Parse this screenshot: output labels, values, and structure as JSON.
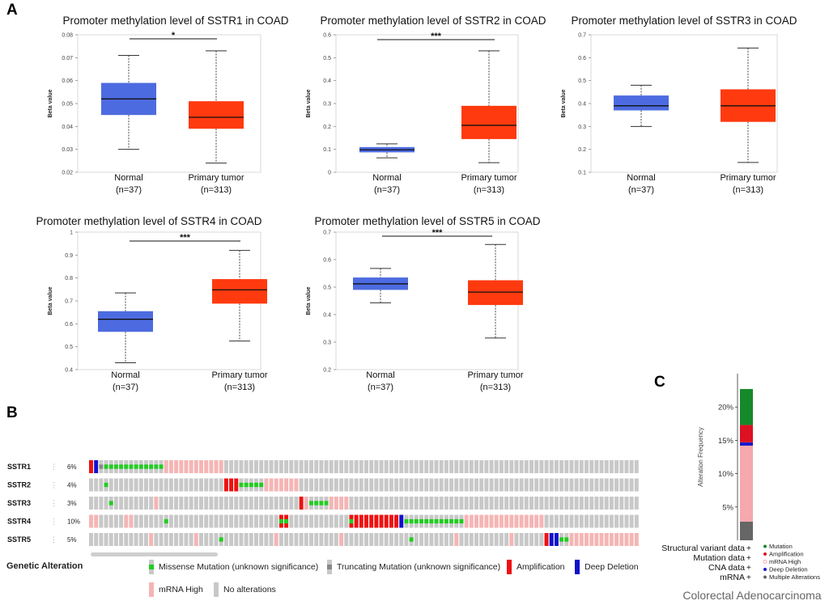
{
  "panels": {
    "a": "A",
    "b": "B",
    "c": "C"
  },
  "colors": {
    "normal": "#4D6BE0",
    "tumor": "#FF3A0F",
    "missense": "#22CC22",
    "truncating": "#888888",
    "amplification": "#EE1111",
    "deep_deletion": "#1111CC",
    "mrna_high": "#F5B5B5",
    "no_alteration": "#C8C8C8",
    "c_mutation": "#168A2A",
    "c_amplification": "#DD1122",
    "c_mrna_high": "#F5A8AE",
    "c_deep_deletion": "#1A1AC8",
    "c_multiple": "#666666"
  },
  "chart_data": [
    {
      "type": "box",
      "id": "SSTR1",
      "title": "Promoter methylation level of SSTR1 in COAD",
      "ylabel": "Beta value",
      "ylim": [
        0.02,
        0.08
      ],
      "yticks": [
        0.02,
        0.03,
        0.04,
        0.05,
        0.06,
        0.07,
        0.08
      ],
      "ytick_labels": [
        "0.02",
        "0.03",
        "0.04",
        "0.05",
        "0.06",
        "0.07",
        "0.08"
      ],
      "significance": "*",
      "groups": [
        {
          "name": "Normal",
          "n": "(n=37)",
          "min": 0.03,
          "q1": 0.045,
          "median": 0.052,
          "q3": 0.059,
          "max": 0.071
        },
        {
          "name": "Primary tumor",
          "n": "(n=313)",
          "min": 0.024,
          "q1": 0.039,
          "median": 0.044,
          "q3": 0.051,
          "max": 0.073
        }
      ]
    },
    {
      "type": "box",
      "id": "SSTR2",
      "title": "Promoter methylation level of SSTR2 in COAD",
      "ylabel": "Beta value",
      "ylim": [
        0,
        0.6
      ],
      "yticks": [
        0,
        0.1,
        0.2,
        0.3,
        0.4,
        0.5,
        0.6
      ],
      "ytick_labels": [
        "0",
        "0.1",
        "0.2",
        "0.3",
        "0.4",
        "0.5",
        "0.6"
      ],
      "significance": "***",
      "groups": [
        {
          "name": "Normal",
          "n": "(n=37)",
          "min": 0.063,
          "q1": 0.087,
          "median": 0.098,
          "q3": 0.11,
          "max": 0.124
        },
        {
          "name": "Primary tumor",
          "n": "(n=313)",
          "min": 0.042,
          "q1": 0.145,
          "median": 0.205,
          "q3": 0.29,
          "max": 0.53
        }
      ]
    },
    {
      "type": "box",
      "id": "SSTR3",
      "title": "Promoter methylation level of SSTR3 in COAD",
      "ylabel": "Beta value",
      "ylim": [
        0.1,
        0.7
      ],
      "yticks": [
        0.1,
        0.2,
        0.3,
        0.4,
        0.5,
        0.6,
        0.7
      ],
      "ytick_labels": [
        "0.1",
        "0.2",
        "0.3",
        "0.4",
        "0.5",
        "0.6",
        "0.7"
      ],
      "significance": "",
      "groups": [
        {
          "name": "Normal",
          "n": "(n=37)",
          "min": 0.3,
          "q1": 0.37,
          "median": 0.39,
          "q3": 0.435,
          "max": 0.48
        },
        {
          "name": "Primary tumor",
          "n": "(n=313)",
          "min": 0.143,
          "q1": 0.32,
          "median": 0.39,
          "q3": 0.462,
          "max": 0.642
        }
      ]
    },
    {
      "type": "box",
      "id": "SSTR4",
      "title": "Promoter methylation level of SSTR4 in COAD",
      "ylabel": "Beta value",
      "ylim": [
        0.4,
        1.0
      ],
      "yticks": [
        0.4,
        0.5,
        0.6,
        0.7,
        0.8,
        0.9,
        1.0
      ],
      "ytick_labels": [
        "0.4",
        "0.5",
        "0.6",
        "0.7",
        "0.8",
        "0.9",
        "1"
      ],
      "significance": "***",
      "groups": [
        {
          "name": "Normal",
          "n": "(n=37)",
          "min": 0.43,
          "q1": 0.565,
          "median": 0.62,
          "q3": 0.655,
          "max": 0.735
        },
        {
          "name": "Primary tumor",
          "n": "(n=313)",
          "min": 0.525,
          "q1": 0.688,
          "median": 0.748,
          "q3": 0.795,
          "max": 0.92
        }
      ]
    },
    {
      "type": "box",
      "id": "SSTR5",
      "title": "Promoter methylation level of SSTR5 in COAD",
      "ylabel": "Beta value",
      "ylim": [
        0.2,
        0.7
      ],
      "yticks": [
        0.2,
        0.3,
        0.4,
        0.5,
        0.6,
        0.7
      ],
      "ytick_labels": [
        "0.2",
        "0.3",
        "0.4",
        "0.5",
        "0.6",
        "0.7"
      ],
      "significance": "***",
      "groups": [
        {
          "name": "Normal",
          "n": "(n=37)",
          "min": 0.443,
          "q1": 0.49,
          "median": 0.512,
          "q3": 0.535,
          "max": 0.568
        },
        {
          "name": "Primary tumor",
          "n": "(n=313)",
          "min": 0.315,
          "q1": 0.435,
          "median": 0.482,
          "q3": 0.525,
          "max": 0.655
        }
      ]
    },
    {
      "type": "stacked_bar",
      "id": "alteration-frequency",
      "ylabel": "Alteration Frequency",
      "ylim": [
        0,
        0.25
      ],
      "yticks": [
        0.05,
        0.1,
        0.15,
        0.2
      ],
      "ytick_labels": [
        "5%",
        "10%",
        "15%",
        "20%"
      ],
      "category": "Colorectal Adenocarcinoma",
      "segments": [
        {
          "name": "Multiple Alterations",
          "value": 0.028,
          "color_key": "c_multiple"
        },
        {
          "name": "mRNA High",
          "value": 0.114,
          "color_key": "c_mrna_high"
        },
        {
          "name": "Deep Deletion",
          "value": 0.005,
          "color_key": "c_deep_deletion"
        },
        {
          "name": "Amplification",
          "value": 0.026,
          "color_key": "c_amplification"
        },
        {
          "name": "Mutation",
          "value": 0.054,
          "color_key": "c_mutation"
        }
      ],
      "row_labels": [
        "Structural variant data",
        "Mutation data",
        "CNA data",
        "mRNA"
      ],
      "legend": [
        "Mutation",
        "Amplification",
        "mRNA High",
        "Deep Deletion",
        "Multiple Alterations"
      ]
    }
  ],
  "oncoprint": {
    "n_samples": 110,
    "genes": [
      {
        "name": "SSTR1",
        "pct": "6%",
        "events": [
          [
            0,
            "amplification"
          ],
          [
            1,
            "deep_deletion"
          ],
          [
            2,
            "truncating"
          ],
          [
            3,
            "missense"
          ],
          [
            4,
            "missense"
          ],
          [
            5,
            "missense"
          ],
          [
            6,
            "missense"
          ],
          [
            7,
            "missense"
          ],
          [
            8,
            "missense"
          ],
          [
            9,
            "missense"
          ],
          [
            10,
            "missense"
          ],
          [
            11,
            "missense"
          ],
          [
            12,
            "missense"
          ],
          [
            13,
            "missense"
          ],
          [
            14,
            "missense"
          ],
          [
            15,
            "mrna"
          ],
          [
            16,
            "mrna"
          ],
          [
            17,
            "mrna"
          ],
          [
            18,
            "mrna"
          ],
          [
            19,
            "mrna"
          ],
          [
            20,
            "mrna"
          ],
          [
            21,
            "mrna"
          ],
          [
            22,
            "mrna"
          ],
          [
            23,
            "mrna"
          ],
          [
            24,
            "mrna"
          ],
          [
            25,
            "mrna"
          ],
          [
            26,
            "mrna"
          ]
        ]
      },
      {
        "name": "SSTR2",
        "pct": "4%",
        "events": [
          [
            3,
            "missense"
          ],
          [
            27,
            "amplification"
          ],
          [
            28,
            "amplification"
          ],
          [
            29,
            "amplification"
          ],
          [
            30,
            "missense"
          ],
          [
            31,
            "missense"
          ],
          [
            32,
            "missense"
          ],
          [
            33,
            "missense"
          ],
          [
            34,
            "missense"
          ],
          [
            35,
            "mrna"
          ],
          [
            36,
            "mrna"
          ],
          [
            37,
            "mrna"
          ],
          [
            38,
            "mrna"
          ],
          [
            39,
            "mrna"
          ],
          [
            40,
            "mrna"
          ],
          [
            41,
            "mrna"
          ]
        ]
      },
      {
        "name": "SSTR3",
        "pct": "3%",
        "events": [
          [
            4,
            "missense"
          ],
          [
            13,
            "mrna"
          ],
          [
            42,
            "amplification"
          ],
          [
            43,
            "mrna"
          ],
          [
            44,
            "missense"
          ],
          [
            45,
            "missense"
          ],
          [
            46,
            "missense"
          ],
          [
            47,
            "missense"
          ],
          [
            48,
            "mrna"
          ],
          [
            49,
            "mrna"
          ],
          [
            50,
            "mrna"
          ],
          [
            51,
            "mrna"
          ]
        ]
      },
      {
        "name": "SSTR4",
        "pct": "10%",
        "events": [
          [
            0,
            "mrna"
          ],
          [
            1,
            "mrna"
          ],
          [
            7,
            "mrna"
          ],
          [
            8,
            "mrna"
          ],
          [
            15,
            "missense"
          ],
          [
            38,
            "amp_missense"
          ],
          [
            39,
            "amp_missense"
          ],
          [
            52,
            "amp_missense"
          ],
          [
            53,
            "amplification"
          ],
          [
            54,
            "amplification"
          ],
          [
            55,
            "amplification"
          ],
          [
            56,
            "amplification"
          ],
          [
            57,
            "amplification"
          ],
          [
            58,
            "amplification"
          ],
          [
            59,
            "amplification"
          ],
          [
            60,
            "amplification"
          ],
          [
            61,
            "amplification"
          ],
          [
            62,
            "deep_deletion"
          ],
          [
            63,
            "missense"
          ],
          [
            64,
            "missense"
          ],
          [
            65,
            "missense"
          ],
          [
            66,
            "missense"
          ],
          [
            67,
            "missense"
          ],
          [
            68,
            "missense"
          ],
          [
            69,
            "missense"
          ],
          [
            70,
            "missense"
          ],
          [
            71,
            "missense"
          ],
          [
            72,
            "missense"
          ],
          [
            73,
            "missense"
          ],
          [
            74,
            "missense"
          ],
          [
            75,
            "mrna"
          ],
          [
            76,
            "mrna"
          ],
          [
            77,
            "mrna"
          ],
          [
            78,
            "mrna"
          ],
          [
            79,
            "mrna"
          ],
          [
            80,
            "mrna"
          ],
          [
            81,
            "mrna"
          ],
          [
            82,
            "mrna"
          ],
          [
            83,
            "mrna"
          ],
          [
            84,
            "mrna"
          ],
          [
            85,
            "mrna"
          ],
          [
            86,
            "mrna"
          ],
          [
            87,
            "mrna"
          ],
          [
            88,
            "mrna"
          ],
          [
            89,
            "mrna"
          ],
          [
            90,
            "mrna"
          ]
        ]
      },
      {
        "name": "SSTR5",
        "pct": "5%",
        "events": [
          [
            12,
            "mrna"
          ],
          [
            21,
            "mrna"
          ],
          [
            26,
            "missense"
          ],
          [
            37,
            "mrna"
          ],
          [
            50,
            "mrna"
          ],
          [
            64,
            "missense"
          ],
          [
            73,
            "mrna"
          ],
          [
            84,
            "mrna"
          ],
          [
            91,
            "amplification"
          ],
          [
            92,
            "deep_deletion"
          ],
          [
            93,
            "deep_deletion"
          ],
          [
            94,
            "missense"
          ],
          [
            95,
            "missense"
          ],
          [
            96,
            "mrna"
          ],
          [
            97,
            "mrna"
          ],
          [
            98,
            "mrna"
          ],
          [
            99,
            "mrna"
          ],
          [
            100,
            "mrna"
          ],
          [
            101,
            "mrna"
          ],
          [
            102,
            "mrna"
          ],
          [
            103,
            "mrna"
          ],
          [
            104,
            "mrna"
          ],
          [
            105,
            "mrna"
          ],
          [
            106,
            "mrna"
          ],
          [
            107,
            "mrna"
          ],
          [
            108,
            "mrna"
          ],
          [
            109,
            "mrna"
          ]
        ]
      }
    ],
    "legend_title": "Genetic Alteration",
    "legend": {
      "missense": "Missense Mutation (unknown significance)",
      "truncating": "Truncating Mutation (unknown significance)",
      "amplification": "Amplification",
      "deep_deletion": "Deep Deletion",
      "mrna_high": "mRNA High",
      "no_alteration": "No alterations"
    }
  }
}
